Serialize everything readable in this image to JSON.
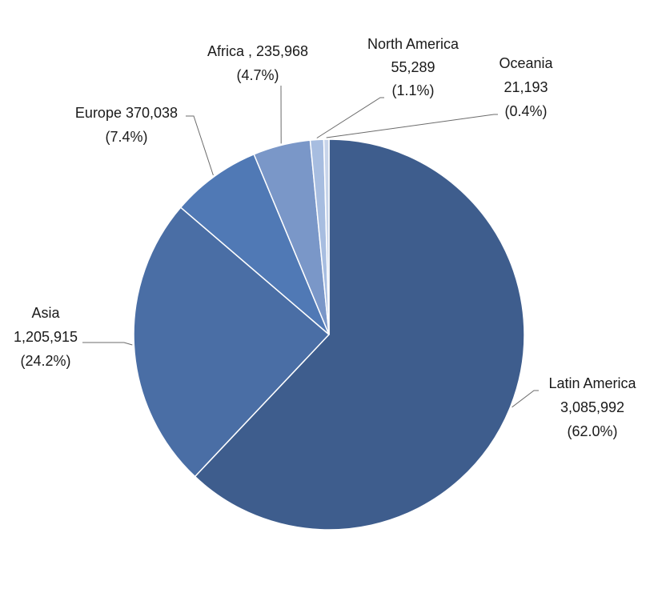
{
  "chart_data": {
    "type": "pie",
    "start_angle_deg": 0,
    "direction": "clockwise",
    "legend": "none",
    "slices": [
      {
        "name": "Latin America",
        "value": "3,085,992",
        "pct": "(62.0%)",
        "color": "#3e5d8d"
      },
      {
        "name": "Asia",
        "value": "1,205,915",
        "pct": "(24.2%)",
        "color": "#4a6ea5"
      },
      {
        "name": "Europe",
        "value": "370,038",
        "pct": "(7.4%)",
        "color": "#5079b5"
      },
      {
        "name": "Africa",
        "value": "235,968",
        "pct": "(4.7%)",
        "color": "#7a97c8"
      },
      {
        "name": "North America",
        "value": "55,289",
        "pct": "(1.1%)",
        "color": "#a7bde0"
      },
      {
        "name": "Oceania",
        "value": "21,193",
        "pct": "(0.4%)",
        "color": "#c7d4ea"
      }
    ]
  }
}
